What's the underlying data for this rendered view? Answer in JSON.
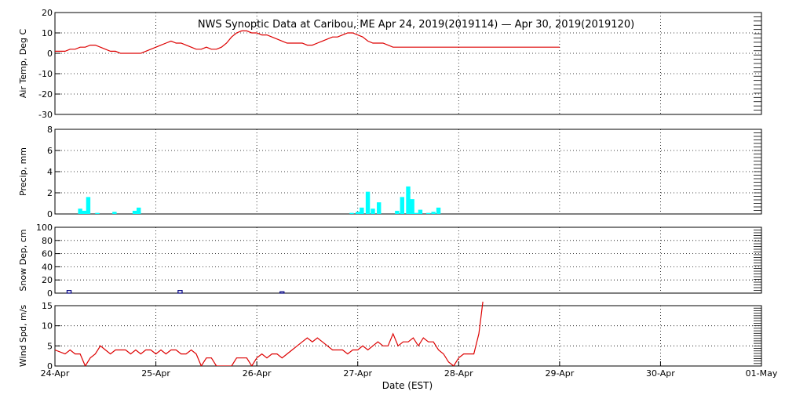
{
  "chart_data": {
    "title": "NWS Synoptic Data at Caribou, ME   Apr 24, 2019(2019114) — Apr 30, 2019(2019120)",
    "xlabel": "Date (EST)",
    "x_range": [
      "24-Apr",
      "01-May"
    ],
    "x_ticks": [
      "24-Apr",
      "25-Apr",
      "26-Apr",
      "27-Apr",
      "28-Apr",
      "29-Apr",
      "30-Apr",
      "01-May"
    ],
    "grid": true,
    "panels": [
      {
        "type": "line",
        "ylabel": "Air Temp, Deg C",
        "ylim": [
          -30,
          20
        ],
        "yticks": [
          -30,
          -20,
          -10,
          0,
          10,
          20
        ],
        "color": "#dd0000",
        "x": [
          0,
          0.1,
          0.15,
          0.2,
          0.25,
          0.3,
          0.35,
          0.4,
          0.45,
          0.5,
          0.55,
          0.6,
          0.65,
          0.7,
          0.75,
          0.8,
          0.85,
          0.9,
          0.95,
          1.0,
          1.05,
          1.1,
          1.15,
          1.2,
          1.25,
          1.3,
          1.35,
          1.4,
          1.45,
          1.5,
          1.55,
          1.6,
          1.65,
          1.7,
          1.75,
          1.8,
          1.85,
          1.9,
          1.95,
          2.0,
          2.05,
          2.1,
          2.15,
          2.2,
          2.25,
          2.3,
          2.35,
          2.4,
          2.45,
          2.5,
          2.55,
          2.6,
          2.65,
          2.7,
          2.75,
          2.8,
          2.85,
          2.9,
          2.95,
          3.0,
          3.05,
          3.1,
          3.15,
          3.2,
          3.25,
          3.3,
          3.35,
          3.4,
          3.45,
          3.5,
          3.55,
          3.6,
          3.65,
          3.7,
          3.75,
          3.8,
          3.85,
          3.9,
          3.95,
          4.0,
          4.05,
          4.1,
          4.2,
          4.5,
          5.0
        ],
        "values": [
          1,
          1,
          2,
          2,
          3,
          3,
          4,
          4,
          3,
          2,
          1,
          1,
          0,
          0,
          0,
          0,
          0,
          1,
          2,
          3,
          4,
          5,
          6,
          5,
          5,
          4,
          3,
          2,
          2,
          3,
          2,
          2,
          3,
          5,
          8,
          10,
          11,
          11,
          10,
          10,
          9,
          9,
          8,
          7,
          6,
          5,
          5,
          5,
          5,
          4,
          4,
          5,
          6,
          7,
          8,
          8,
          9,
          10,
          10,
          9,
          8,
          6,
          5,
          5,
          5,
          4,
          3,
          3,
          3,
          3,
          3,
          3,
          3,
          3,
          3,
          3,
          3,
          3,
          3,
          3,
          3,
          3,
          3,
          3,
          3
        ]
      },
      {
        "type": "bar",
        "ylabel": "Precip, mm",
        "ylim": [
          0,
          8
        ],
        "yticks": [
          0,
          2,
          4,
          6,
          8
        ],
        "color": "#00ffff",
        "bar_width": 0.042,
        "x": [
          0.25,
          0.29,
          0.33,
          0.42,
          0.59,
          0.79,
          0.83,
          2.94,
          3.0,
          3.04,
          3.1,
          3.15,
          3.21,
          3.39,
          3.44,
          3.5,
          3.54,
          3.58,
          3.62,
          3.7,
          3.75,
          3.8
        ],
        "values": [
          0.5,
          0.3,
          1.6,
          0.1,
          0.2,
          0.3,
          0.6,
          0.1,
          0.2,
          0.6,
          2.1,
          0.5,
          1.1,
          0.3,
          1.6,
          2.6,
          1.4,
          0.1,
          0.4,
          0.1,
          0.2,
          0.6
        ]
      },
      {
        "type": "bar",
        "ylabel": "Snow Dep, cm",
        "ylim": [
          0,
          100
        ],
        "yticks": [
          0,
          20,
          40,
          60,
          80,
          100
        ],
        "color": "#000080",
        "bar_width": 0.04,
        "x": [
          0.14,
          1.24,
          2.25
        ],
        "values": [
          4,
          4,
          2
        ]
      },
      {
        "type": "line",
        "ylabel": "Wind Spd, m/s",
        "ylim": [
          0,
          15
        ],
        "yticks": [
          0,
          5,
          10,
          15
        ],
        "color": "#dd0000",
        "x": [
          0,
          0.1,
          0.15,
          0.2,
          0.25,
          0.3,
          0.35,
          0.4,
          0.45,
          0.5,
          0.55,
          0.6,
          0.65,
          0.7,
          0.75,
          0.8,
          0.85,
          0.9,
          0.95,
          1.0,
          1.05,
          1.1,
          1.15,
          1.2,
          1.25,
          1.3,
          1.35,
          1.4,
          1.45,
          1.5,
          1.55,
          1.6,
          1.65,
          1.7,
          1.75,
          1.8,
          1.85,
          1.9,
          1.95,
          2.0,
          2.05,
          2.1,
          2.15,
          2.2,
          2.25,
          2.3,
          2.35,
          2.4,
          2.45,
          2.5,
          2.55,
          2.6,
          2.65,
          2.7,
          2.75,
          2.8,
          2.85,
          2.9,
          2.95,
          3.0,
          3.05,
          3.1,
          3.15,
          3.2,
          3.25,
          3.3,
          3.35,
          3.4,
          3.45,
          3.5,
          3.55,
          3.6,
          3.65,
          3.7,
          3.75,
          3.8,
          3.85,
          3.9,
          3.95,
          4.0,
          4.05,
          4.1,
          4.15,
          4.2,
          4.22,
          4.24
        ],
        "values": [
          4,
          3,
          4,
          3,
          3,
          0,
          2,
          3,
          5,
          4,
          3,
          4,
          4,
          4,
          3,
          4,
          3,
          4,
          4,
          3,
          4,
          3,
          4,
          4,
          3,
          3,
          4,
          3,
          0,
          2,
          2,
          0,
          0,
          0,
          0,
          2,
          2,
          2,
          0,
          2,
          3,
          2,
          3,
          3,
          2,
          3,
          4,
          5,
          6,
          7,
          6,
          7,
          6,
          5,
          4,
          4,
          4,
          3,
          4,
          4,
          5,
          4,
          5,
          6,
          5,
          5,
          8,
          5,
          6,
          6,
          7,
          5,
          7,
          6,
          6,
          4,
          3,
          1,
          0,
          2,
          3,
          3,
          3,
          8,
          12,
          16
        ]
      }
    ]
  }
}
